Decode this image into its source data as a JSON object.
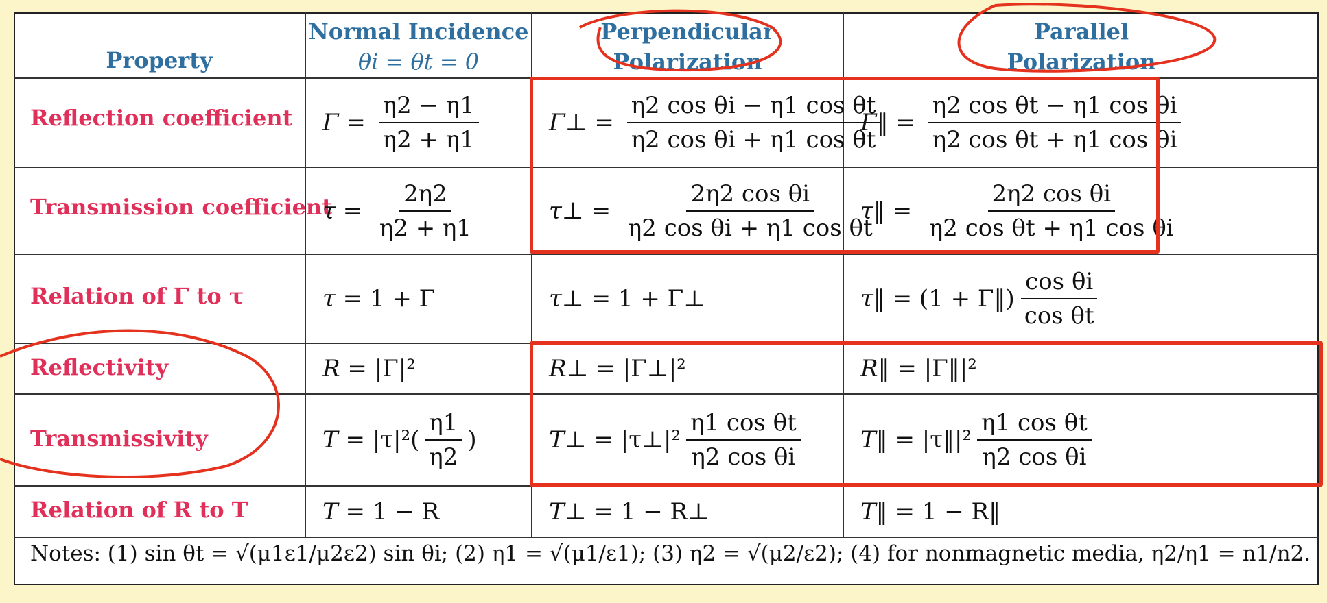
{
  "headers": {
    "property": "Property",
    "normal": "Normal Incidence",
    "normal_sub": "θi = θt = 0",
    "perp_line1": "Perpendicular",
    "perp_line2": "Polarization",
    "par_line1": "Parallel",
    "par_line2": "Polarization"
  },
  "rows": [
    {
      "property": "Reflection coefficient",
      "normal": "Γ = (η2 − η1) / (η2 + η1)",
      "perpendicular": "Γ⊥ = (η2 cos θi − η1 cos θt) / (η2 cos θi + η1 cos θt)",
      "parallel": "Γ‖ = (η2 cos θt − η1 cos θi) / (η2 cos θt + η1 cos θi)"
    },
    {
      "property": "Transmission coefficient",
      "normal": "τ = 2η2 / (η2 + η1)",
      "perpendicular": "τ⊥ = 2η2 cos θi / (η2 cos θi + η1 cos θt)",
      "parallel": "τ‖ = 2η2 cos θi / (η2 cos θt + η1 cos θi)"
    },
    {
      "property": "Relation of Γ to τ",
      "normal": "τ = 1 + Γ",
      "perpendicular": "τ⊥ = 1 + Γ⊥",
      "parallel": "τ‖ = (1 + Γ‖) cos θi / cos θt"
    },
    {
      "property": "Reflectivity",
      "normal": "R = |Γ|²",
      "perpendicular": "R⊥ = |Γ⊥|²",
      "parallel": "R‖ = |Γ‖|²"
    },
    {
      "property": "Transmissivity",
      "normal": "T = |τ|² (η1 / η2)",
      "perpendicular": "T⊥ = |τ⊥|² η1 cos θt / (η2 cos θi)",
      "parallel": "T‖ = |τ‖|² η1 cos θt / (η2 cos θi)"
    },
    {
      "property": "Relation of R to T",
      "normal": "T = 1 − R",
      "perpendicular": "T⊥ = 1 − R⊥",
      "parallel": "T‖ = 1 − R‖"
    }
  ],
  "notes": "Notes: (1) sin θt = √(μ1ε1/μ2ε2) sin θi; (2) η1 = √(μ1/ε1); (3) η2 = √(μ2/ε2); (4) for nonmagnetic media, η2/η1 = n1/n2.",
  "colors": {
    "header": "#2f6fa0",
    "property": "#e0305a",
    "annotation": "#e4321f",
    "background": "#fbf5c9"
  }
}
